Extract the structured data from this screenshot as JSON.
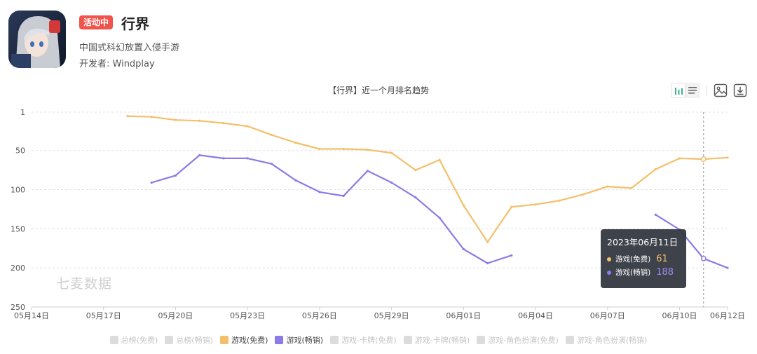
{
  "app": {
    "badge": "活动中",
    "title": "行界",
    "description": "中国式科幻放置入侵手游",
    "developer": "开发者: Windplay"
  },
  "chart_title": "【行界】近一个月排名趋势",
  "toolbar": {
    "icons": [
      "bar-chart-icon",
      "list-icon",
      "save-image-icon",
      "download-icon"
    ]
  },
  "watermark": "七麦数据",
  "tooltip": {
    "date": "2023年06月11日",
    "rows": [
      {
        "label": "游戏(免费)",
        "value": "61",
        "color": "#f4bf6a"
      },
      {
        "label": "游戏(畅销)",
        "value": "188",
        "color": "#8c7ae6"
      }
    ]
  },
  "legend": [
    {
      "label": "总榜(免费)",
      "active": false,
      "color": "#dcdcdc"
    },
    {
      "label": "总榜(畅销)",
      "active": false,
      "color": "#dcdcdc"
    },
    {
      "label": "游戏(免费)",
      "active": true,
      "color": "#f4bf6a"
    },
    {
      "label": "游戏(畅销)",
      "active": true,
      "color": "#8c7ae6"
    },
    {
      "label": "游戏-卡牌(免费)",
      "active": false,
      "color": "#dcdcdc"
    },
    {
      "label": "游戏-卡牌(畅销)",
      "active": false,
      "color": "#dcdcdc"
    },
    {
      "label": "游戏-角色扮演(免费)",
      "active": false,
      "color": "#dcdcdc"
    },
    {
      "label": "游戏-角色扮演(畅销)",
      "active": false,
      "color": "#dcdcdc"
    }
  ],
  "chart_data": {
    "type": "line",
    "title": "【行界】近一个月排名趋势",
    "y_inverted": true,
    "ylim": [
      1,
      250
    ],
    "yticks": [
      1,
      50,
      100,
      150,
      200,
      250
    ],
    "xlim": [
      0,
      29
    ],
    "x_ticks": [
      {
        "day": 0,
        "label": "05月14日"
      },
      {
        "day": 3,
        "label": "05月17日"
      },
      {
        "day": 6,
        "label": "05月20日"
      },
      {
        "day": 9,
        "label": "05月23日"
      },
      {
        "day": 12,
        "label": "05月26日"
      },
      {
        "day": 15,
        "label": "05月29日"
      },
      {
        "day": 18,
        "label": "06月01日"
      },
      {
        "day": 21,
        "label": "06月04日"
      },
      {
        "day": 24,
        "label": "06月07日"
      },
      {
        "day": 27,
        "label": "06月10日"
      },
      {
        "day": 29,
        "label": "06月12日"
      }
    ],
    "crosshair_day": 28,
    "grid": true,
    "series": [
      {
        "name": "游戏(免费)",
        "color": "#f4bf6a",
        "points": [
          [
            4,
            6
          ],
          [
            5,
            7
          ],
          [
            6,
            11
          ],
          [
            7,
            12
          ],
          [
            8,
            15
          ],
          [
            9,
            19
          ],
          [
            10,
            30
          ],
          [
            11,
            40
          ],
          [
            12,
            48
          ],
          [
            13,
            48
          ],
          [
            14,
            49
          ],
          [
            15,
            53
          ],
          [
            16,
            75
          ],
          [
            17,
            62
          ],
          [
            18,
            120
          ],
          [
            19,
            167
          ],
          [
            20,
            122
          ],
          [
            21,
            119
          ],
          [
            22,
            114
          ],
          [
            23,
            106
          ],
          [
            24,
            96
          ],
          [
            25,
            98
          ],
          [
            26,
            74
          ],
          [
            27,
            60
          ],
          [
            28,
            61
          ],
          [
            29,
            59
          ]
        ]
      },
      {
        "name": "游戏(畅销)",
        "color": "#8c7ae6",
        "segments": [
          [
            [
              5,
              91
            ],
            [
              6,
              82
            ],
            [
              7,
              56
            ],
            [
              8,
              60
            ],
            [
              9,
              60
            ],
            [
              10,
              67
            ],
            [
              11,
              88
            ],
            [
              12,
              103
            ],
            [
              13,
              108
            ],
            [
              14,
              76
            ],
            [
              15,
              91
            ],
            [
              16,
              110
            ],
            [
              17,
              136
            ],
            [
              18,
              176
            ],
            [
              19,
              194
            ],
            [
              20,
              184
            ]
          ],
          [
            [
              26,
              132
            ],
            [
              27,
              151
            ],
            [
              28,
              188
            ],
            [
              29,
              200
            ]
          ]
        ]
      }
    ]
  }
}
